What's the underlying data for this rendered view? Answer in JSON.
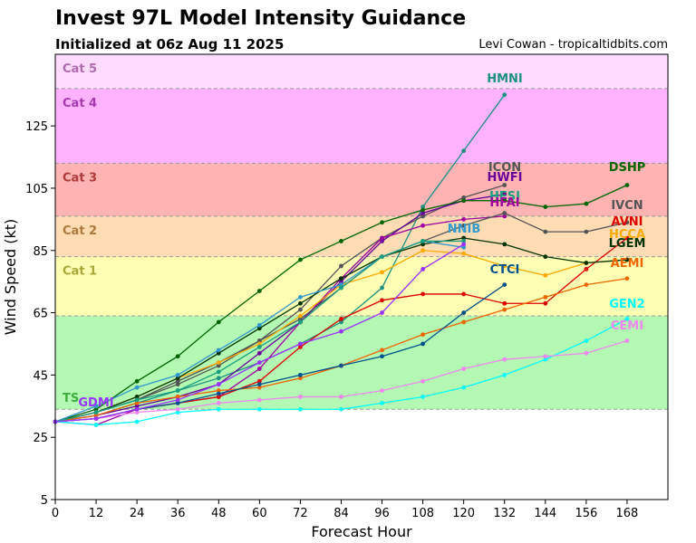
{
  "header": {
    "title": "Invest 97L Model Intensity Guidance",
    "subtitle": "Initialized at 06z Aug 11 2025",
    "credit": "Levi Cowan - tropicaltidbits.com"
  },
  "chart_data": {
    "type": "line",
    "xlabel": "Forecast Hour",
    "ylabel": "Wind Speed (kt)",
    "xlim": [
      0,
      180
    ],
    "ylim": [
      5,
      148
    ],
    "xticks": [
      0,
      12,
      24,
      36,
      48,
      60,
      72,
      84,
      96,
      108,
      120,
      132,
      144,
      156,
      168
    ],
    "yticks": [
      5,
      25,
      45,
      65,
      85,
      105,
      125
    ],
    "bands": [
      {
        "name": "TS",
        "label": "TS",
        "from": 34,
        "to": 64,
        "color": "#b3f9b3",
        "label_color": "#3fae3f"
      },
      {
        "name": "Cat 1",
        "label": "Cat 1",
        "from": 64,
        "to": 83,
        "color": "#ffffb3",
        "label_color": "#a8a83a"
      },
      {
        "name": "Cat 2",
        "label": "Cat 2",
        "from": 83,
        "to": 96,
        "color": "#ffdcb3",
        "label_color": "#b07a3f"
      },
      {
        "name": "Cat 3",
        "label": "Cat 3",
        "from": 96,
        "to": 113,
        "color": "#ffb3b3",
        "label_color": "#b03a3a"
      },
      {
        "name": "Cat 4",
        "label": "Cat 4",
        "from": 113,
        "to": 137,
        "color": "#ffb3ff",
        "label_color": "#a83ab0"
      },
      {
        "name": "Cat 5",
        "label": "Cat 5",
        "from": 137,
        "to": 148,
        "color": "#ffdcff",
        "label_color": "#b06ab0"
      }
    ],
    "series": [
      {
        "name": "HMNI",
        "color": "#1e9080",
        "x": [
          0,
          12,
          24,
          36,
          48,
          60,
          72,
          84,
          96,
          108,
          120,
          132
        ],
        "values": [
          30,
          32,
          36,
          40,
          44,
          49,
          55,
          62,
          73,
          99,
          117,
          135
        ]
      },
      {
        "name": "ICON",
        "color": "#555555",
        "x": [
          0,
          12,
          24,
          36,
          48,
          60,
          72,
          84,
          96,
          108,
          120,
          132
        ],
        "values": [
          30,
          33,
          37,
          42,
          48,
          56,
          66,
          80,
          89,
          96,
          102,
          106
        ]
      },
      {
        "name": "HWFI",
        "color": "#660099",
        "x": [
          0,
          12,
          24,
          36,
          48,
          60,
          72,
          84,
          96,
          108,
          120,
          132
        ],
        "values": [
          30,
          32,
          35,
          38,
          42,
          52,
          62,
          75,
          88,
          97,
          101,
          103
        ]
      },
      {
        "name": "HFAI",
        "color": "#a000a0",
        "x": [
          0,
          12,
          24,
          36,
          48,
          60,
          72,
          84,
          96,
          108,
          120,
          132
        ],
        "values": [
          30,
          29,
          34,
          36,
          38,
          47,
          62,
          76,
          89,
          93,
          95,
          96
        ]
      },
      {
        "name": "DSHP",
        "color": "#006400",
        "x": [
          0,
          12,
          24,
          36,
          48,
          60,
          72,
          84,
          96,
          108,
          120,
          132,
          144,
          156,
          168
        ],
        "values": [
          30,
          34,
          43,
          51,
          62,
          72,
          82,
          88,
          94,
          98,
          101,
          101,
          99,
          100,
          106
        ]
      },
      {
        "name": "IVCN",
        "color": "#555555",
        "x": [
          0,
          12,
          24,
          36,
          48,
          60,
          72,
          84,
          96,
          108,
          120,
          132,
          144,
          156,
          168
        ],
        "values": [
          30,
          33,
          37,
          43,
          49,
          56,
          63,
          73,
          83,
          88,
          93,
          97,
          91,
          91,
          94
        ]
      },
      {
        "name": "AVNI",
        "color": "#dd0000",
        "x": [
          0,
          12,
          24,
          36,
          48,
          60,
          72,
          84,
          96,
          108,
          120,
          132,
          144,
          156,
          168
        ],
        "values": [
          30,
          31,
          34,
          36,
          38,
          43,
          54,
          63,
          69,
          71,
          71,
          68,
          68,
          79,
          89
        ]
      },
      {
        "name": "HCCA",
        "color": "#ffaa00",
        "x": [
          0,
          12,
          24,
          36,
          48,
          60,
          72,
          84,
          96,
          108,
          120,
          132,
          144,
          156,
          168
        ],
        "values": [
          30,
          33,
          38,
          44,
          49,
          55,
          64,
          74,
          78,
          85,
          84,
          80,
          77,
          81,
          82
        ]
      },
      {
        "name": "LGEM",
        "color": "#003300",
        "x": [
          0,
          12,
          24,
          36,
          48,
          60,
          72,
          84,
          96,
          108,
          120,
          132,
          144,
          156,
          168
        ],
        "values": [
          30,
          33,
          38,
          44,
          52,
          60,
          68,
          76,
          83,
          87,
          89,
          87,
          83,
          81,
          82
        ]
      },
      {
        "name": "AEMI",
        "color": "#ee6600",
        "x": [
          0,
          12,
          24,
          36,
          48,
          60,
          72,
          84,
          96,
          108,
          120,
          132,
          144,
          156,
          168
        ],
        "values": [
          30,
          32,
          36,
          38,
          40,
          41,
          44,
          48,
          53,
          58,
          62,
          66,
          70,
          74,
          76
        ]
      },
      {
        "name": "CTCI",
        "color": "#00508c",
        "x": [
          0,
          12,
          24,
          36,
          48,
          60,
          72,
          84,
          96,
          108,
          120,
          132
        ],
        "values": [
          30,
          31,
          34,
          36,
          39,
          42,
          45,
          48,
          51,
          55,
          65,
          74
        ]
      },
      {
        "name": "NNIB",
        "color": "#3399cc",
        "x": [
          0,
          12,
          24,
          36,
          48,
          60,
          72,
          84,
          96,
          108,
          120
        ],
        "values": [
          30,
          35,
          41,
          45,
          53,
          61,
          70,
          74,
          83,
          88,
          86
        ]
      },
      {
        "name": "GEN2",
        "color": "#00ffff",
        "x": [
          0,
          12,
          24,
          36,
          48,
          60,
          72,
          84,
          96,
          108,
          120,
          132,
          144,
          156,
          168
        ],
        "values": [
          30,
          29,
          30,
          33,
          34,
          34,
          34,
          34,
          36,
          38,
          41,
          45,
          50,
          56,
          63
        ]
      },
      {
        "name": "CEMI",
        "color": "#ee88ee",
        "x": [
          0,
          12,
          24,
          36,
          48,
          60,
          72,
          84,
          96,
          108,
          120,
          132,
          144,
          156,
          168
        ],
        "values": [
          30,
          31,
          33,
          34,
          36,
          37,
          38,
          38,
          40,
          43,
          47,
          50,
          51,
          52,
          56
        ]
      },
      {
        "name": "HFSI",
        "color": "#18a080",
        "x": [
          0,
          12,
          24,
          36,
          48,
          60,
          72,
          84,
          96,
          108,
          120
        ],
        "values": [
          30,
          33,
          37,
          40,
          46,
          54,
          62,
          73,
          83,
          88,
          88
        ]
      },
      {
        "name": "GDMI",
        "color": "#9933ff",
        "x": [
          0,
          12,
          24,
          36,
          48,
          60,
          72,
          84,
          96,
          108,
          120
        ],
        "values": [
          30,
          31,
          34,
          37,
          42,
          49,
          55,
          59,
          65,
          79,
          87
        ]
      }
    ],
    "end_labels": [
      {
        "name": "HMNI",
        "label": "HMNI",
        "color": "#1e9080"
      },
      {
        "name": "ICON",
        "label": "ICON",
        "color": "#555555"
      },
      {
        "name": "HWFI",
        "label": "HWFI",
        "color": "#660099"
      },
      {
        "name": "HFSI",
        "label": "HFSI",
        "color": "#18a080"
      },
      {
        "name": "HFAI",
        "label": "HFAI",
        "color": "#a000a0"
      },
      {
        "name": "DSHP",
        "label": "DSHP",
        "color": "#006400"
      },
      {
        "name": "IVCN",
        "label": "IVCN",
        "color": "#555555"
      },
      {
        "name": "AVNI",
        "label": "AVNI",
        "color": "#dd0000"
      },
      {
        "name": "HCCA",
        "label": "HCCA",
        "color": "#ffaa00"
      },
      {
        "name": "LGEM",
        "label": "LGEM",
        "color": "#003300"
      },
      {
        "name": "AEMI",
        "label": "AEMI",
        "color": "#ee6600"
      },
      {
        "name": "NNIB",
        "label": "NNIB",
        "color": "#3399cc"
      },
      {
        "name": "CTCI",
        "label": "CTCI",
        "color": "#00508c"
      },
      {
        "name": "GEN2",
        "label": "GEN2",
        "color": "#00ffff"
      },
      {
        "name": "CEMI",
        "label": "CEMI",
        "color": "#ee88ee"
      },
      {
        "name": "GDMI",
        "label": "GDMI",
        "color": "#9933ff"
      }
    ]
  }
}
